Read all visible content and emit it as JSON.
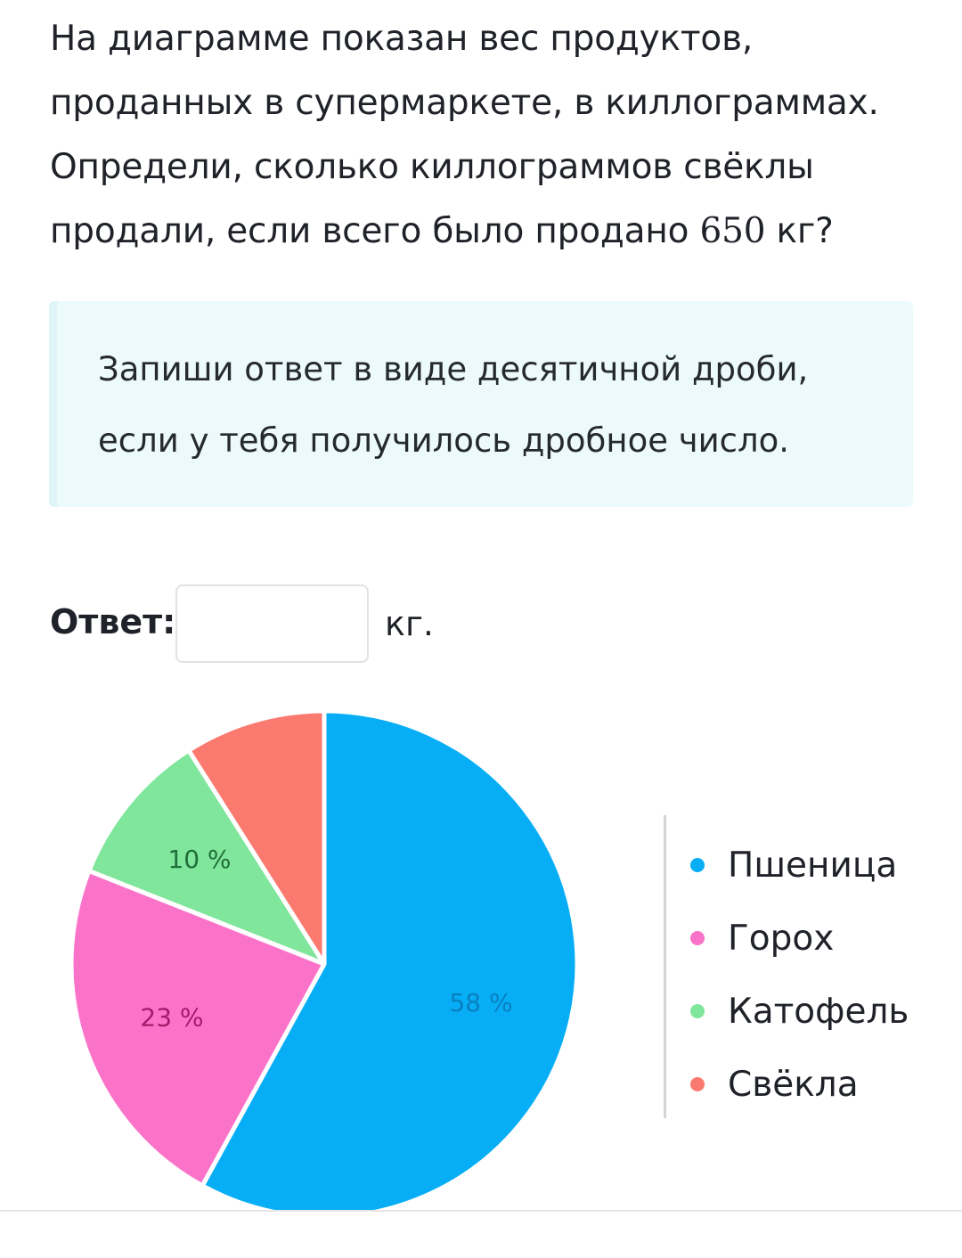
{
  "question": {
    "lines": [
      "На диаграмме показан вес продуктов,",
      "проданных в супермаркете, в киллограммах.",
      "Определи, сколько киллограммов свёклы",
      "продали, если всего было продано "
    ],
    "total": "650",
    "ending": " кг?"
  },
  "hint": {
    "line1": "Запиши ответ в виде десятичной дроби,",
    "line2": "если у тебя получилось дробное число."
  },
  "answer": {
    "label": "Ответ:",
    "value": "",
    "placeholder": "",
    "unit": "кг."
  },
  "chart_data": {
    "type": "pie",
    "categories": [
      "Пшеница",
      "Горох",
      "Катофель",
      "Свёкла"
    ],
    "values": [
      58,
      23,
      10,
      9
    ],
    "labels": [
      "58 %",
      "23 %",
      "10 %",
      ""
    ],
    "colors": [
      "#07aef5",
      "#fb73c9",
      "#80e69c",
      "#fb7a70"
    ],
    "label_colors": [
      "#0a7fc0",
      "#a5196a",
      "#1f6f38",
      ""
    ],
    "legend_position": "right"
  }
}
